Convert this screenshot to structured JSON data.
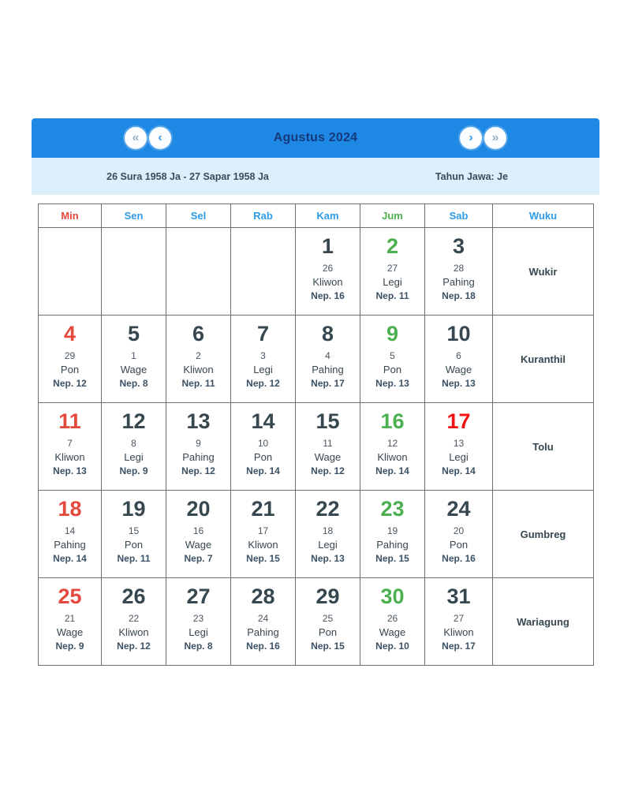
{
  "colors": {
    "header_bg": "#1e88e5",
    "subheader_bg": "#ddeffa",
    "title_text": "#16397c",
    "border": "#6e6e6e",
    "sunday_red": "#e4493e",
    "friday_green": "#4caf50",
    "weekday_blue": "#2e9be6",
    "holiday_red": "#ef1313",
    "date_default": "#37474f"
  },
  "header": {
    "title": "Agustus 2024",
    "nav": {
      "first": "«",
      "prev": "‹",
      "next": "›",
      "last": "»"
    }
  },
  "subheader": {
    "range": "26 Sura 1958 Ja - 27 Sapar 1958 Ja",
    "year_label": "Tahun Jawa: Je"
  },
  "calendar": {
    "day_headers": [
      {
        "label": "Min",
        "tone": "sunday"
      },
      {
        "label": "Sen",
        "tone": "weekday"
      },
      {
        "label": "Sel",
        "tone": "weekday"
      },
      {
        "label": "Rab",
        "tone": "weekday"
      },
      {
        "label": "Kam",
        "tone": "weekday"
      },
      {
        "label": "Jum",
        "tone": "friday"
      },
      {
        "label": "Sab",
        "tone": "weekday"
      },
      {
        "label": "Wuku",
        "tone": "weekday"
      }
    ],
    "weeks": [
      {
        "wuku": "Wukir",
        "days": [
          null,
          null,
          null,
          null,
          {
            "date": "1",
            "jawa": "26",
            "pasaran": "Kliwon",
            "neptu_label": "Nep. 16",
            "tone": "default"
          },
          {
            "date": "2",
            "jawa": "27",
            "pasaran": "Legi",
            "neptu_label": "Nep. 11",
            "tone": "friday"
          },
          {
            "date": "3",
            "jawa": "28",
            "pasaran": "Pahing",
            "neptu_label": "Nep. 18",
            "tone": "default"
          }
        ]
      },
      {
        "wuku": "Kuranthil",
        "days": [
          {
            "date": "4",
            "jawa": "29",
            "pasaran": "Pon",
            "neptu_label": "Nep. 12",
            "tone": "sunday"
          },
          {
            "date": "5",
            "jawa": "1",
            "pasaran": "Wage",
            "neptu_label": "Nep. 8",
            "tone": "default"
          },
          {
            "date": "6",
            "jawa": "2",
            "pasaran": "Kliwon",
            "neptu_label": "Nep. 11",
            "tone": "default"
          },
          {
            "date": "7",
            "jawa": "3",
            "pasaran": "Legi",
            "neptu_label": "Nep. 12",
            "tone": "default"
          },
          {
            "date": "8",
            "jawa": "4",
            "pasaran": "Pahing",
            "neptu_label": "Nep. 17",
            "tone": "default"
          },
          {
            "date": "9",
            "jawa": "5",
            "pasaran": "Pon",
            "neptu_label": "Nep. 13",
            "tone": "friday"
          },
          {
            "date": "10",
            "jawa": "6",
            "pasaran": "Wage",
            "neptu_label": "Nep. 13",
            "tone": "default"
          }
        ]
      },
      {
        "wuku": "Tolu",
        "days": [
          {
            "date": "11",
            "jawa": "7",
            "pasaran": "Kliwon",
            "neptu_label": "Nep. 13",
            "tone": "sunday"
          },
          {
            "date": "12",
            "jawa": "8",
            "pasaran": "Legi",
            "neptu_label": "Nep. 9",
            "tone": "default"
          },
          {
            "date": "13",
            "jawa": "9",
            "pasaran": "Pahing",
            "neptu_label": "Nep. 12",
            "tone": "default"
          },
          {
            "date": "14",
            "jawa": "10",
            "pasaran": "Pon",
            "neptu_label": "Nep. 14",
            "tone": "default"
          },
          {
            "date": "15",
            "jawa": "11",
            "pasaran": "Wage",
            "neptu_label": "Nep. 12",
            "tone": "default"
          },
          {
            "date": "16",
            "jawa": "12",
            "pasaran": "Kliwon",
            "neptu_label": "Nep. 14",
            "tone": "friday"
          },
          {
            "date": "17",
            "jawa": "13",
            "pasaran": "Legi",
            "neptu_label": "Nep. 14",
            "tone": "holiday"
          }
        ]
      },
      {
        "wuku": "Gumbreg",
        "days": [
          {
            "date": "18",
            "jawa": "14",
            "pasaran": "Pahing",
            "neptu_label": "Nep. 14",
            "tone": "sunday"
          },
          {
            "date": "19",
            "jawa": "15",
            "pasaran": "Pon",
            "neptu_label": "Nep. 11",
            "tone": "default"
          },
          {
            "date": "20",
            "jawa": "16",
            "pasaran": "Wage",
            "neptu_label": "Nep. 7",
            "tone": "default"
          },
          {
            "date": "21",
            "jawa": "17",
            "pasaran": "Kliwon",
            "neptu_label": "Nep. 15",
            "tone": "default"
          },
          {
            "date": "22",
            "jawa": "18",
            "pasaran": "Legi",
            "neptu_label": "Nep. 13",
            "tone": "default"
          },
          {
            "date": "23",
            "jawa": "19",
            "pasaran": "Pahing",
            "neptu_label": "Nep. 15",
            "tone": "friday"
          },
          {
            "date": "24",
            "jawa": "20",
            "pasaran": "Pon",
            "neptu_label": "Nep. 16",
            "tone": "default"
          }
        ]
      },
      {
        "wuku": "Wariagung",
        "days": [
          {
            "date": "25",
            "jawa": "21",
            "pasaran": "Wage",
            "neptu_label": "Nep. 9",
            "tone": "sunday"
          },
          {
            "date": "26",
            "jawa": "22",
            "pasaran": "Kliwon",
            "neptu_label": "Nep. 12",
            "tone": "default"
          },
          {
            "date": "27",
            "jawa": "23",
            "pasaran": "Legi",
            "neptu_label": "Nep. 8",
            "tone": "default"
          },
          {
            "date": "28",
            "jawa": "24",
            "pasaran": "Pahing",
            "neptu_label": "Nep. 16",
            "tone": "default"
          },
          {
            "date": "29",
            "jawa": "25",
            "pasaran": "Pon",
            "neptu_label": "Nep. 15",
            "tone": "default"
          },
          {
            "date": "30",
            "jawa": "26",
            "pasaran": "Wage",
            "neptu_label": "Nep. 10",
            "tone": "friday"
          },
          {
            "date": "31",
            "jawa": "27",
            "pasaran": "Kliwon",
            "neptu_label": "Nep. 17",
            "tone": "default"
          }
        ]
      }
    ]
  }
}
